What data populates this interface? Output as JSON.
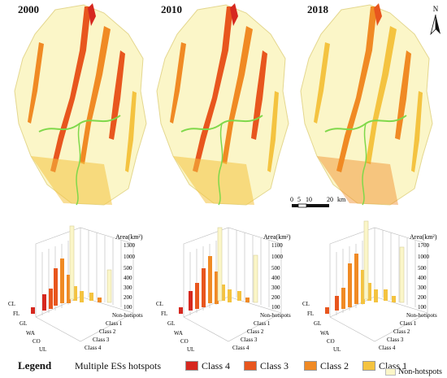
{
  "years": [
    "2000",
    "2010",
    "2018"
  ],
  "north": {
    "label": "N"
  },
  "scale": {
    "ticks": [
      "0",
      "5",
      "10",
      "20"
    ],
    "unit": "km"
  },
  "colors": {
    "class4": "#d6281f",
    "class3": "#e8561e",
    "class2": "#f08a24",
    "class1": "#f4c340",
    "nonhot": "#fbf6c8",
    "river": "#7fd84a"
  },
  "legend": {
    "title": "Legend",
    "subtitle": "Multiple ESs hotspots",
    "items": [
      "Class 4",
      "Class 3",
      "Class 2",
      "Class 1",
      "Non-hotspots"
    ]
  },
  "charts": [
    {
      "area_label": "Area(km²)",
      "ticks": [
        "100",
        "200",
        "300",
        "400",
        "500",
        "1000",
        "1300"
      ],
      "rows": [
        "CL",
        "FL",
        "GL",
        "WA",
        "CO",
        "UL"
      ],
      "cols": [
        "Class 4",
        "Class 3",
        "Class 2",
        "Class 1",
        "Non-hotspots"
      ]
    },
    {
      "area_label": "Area(km²)",
      "ticks": [
        "100",
        "200",
        "300",
        "400",
        "500",
        "1000",
        "1100"
      ],
      "rows": [
        "CL",
        "FL",
        "GL",
        "WA",
        "CO",
        "UL"
      ],
      "cols": [
        "Class 4",
        "Class 3",
        "Class 2",
        "Class 1",
        "Non-hotspots"
      ]
    },
    {
      "area_label": "Area(km²)",
      "ticks": [
        "100",
        "200",
        "300",
        "400",
        "500",
        "1000",
        "1700"
      ],
      "rows": [
        "CL",
        "FL",
        "GL",
        "WA",
        "CO",
        "UL"
      ],
      "cols": [
        "Class 4",
        "Class 3",
        "Class 2",
        "Class 1",
        "Non-hotspots"
      ]
    }
  ]
}
